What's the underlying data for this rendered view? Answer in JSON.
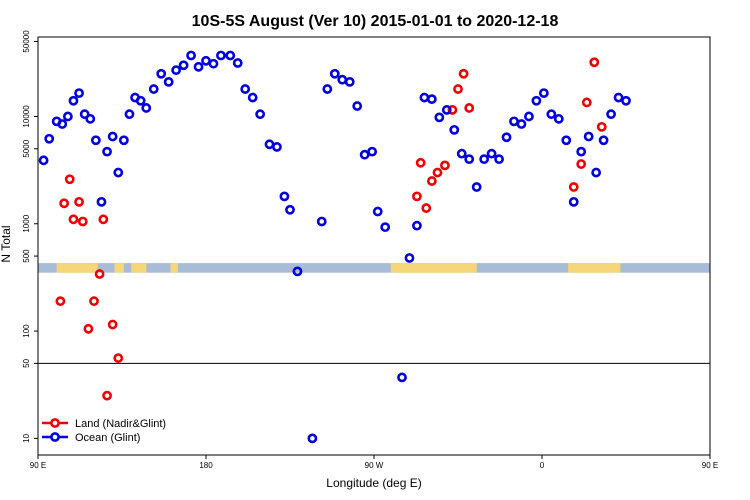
{
  "chart_data": {
    "type": "scatter",
    "title": "10S-5S August (Ver 10)   2015-01-01 to 2020-12-18",
    "xlabel": "Longitude (deg E)",
    "ylabel": "N Total",
    "x_range": [
      90,
      450
    ],
    "y_scale": "log",
    "ylim": [
      7,
      55000
    ],
    "x_ticks": [
      {
        "value": 90,
        "label": "90 E"
      },
      {
        "value": 180,
        "label": "180"
      },
      {
        "value": 270,
        "label": "90 W"
      },
      {
        "value": 360,
        "label": "0"
      },
      {
        "value": 450,
        "label": "90 E"
      },
      {
        "value": 540,
        "label": "180"
      }
    ],
    "y_ticks": [
      {
        "value": 10,
        "label": "10"
      },
      {
        "value": 50,
        "label": "50"
      },
      {
        "value": 100,
        "label": "100"
      },
      {
        "value": 500,
        "label": "500"
      },
      {
        "value": 1000,
        "label": "1000"
      },
      {
        "value": 5000,
        "label": "5000"
      },
      {
        "value": 10000,
        "label": "10000"
      },
      {
        "value": 50000,
        "label": "50000"
      }
    ],
    "reference_line_y": 50,
    "map_strip": {
      "y_range": [
        350,
        430
      ],
      "ocean_color": "#a8bcd8",
      "land_color": "#f5d77a",
      "land_segments": [
        [
          100,
          122
        ],
        [
          131,
          136
        ],
        [
          140,
          148
        ],
        [
          161,
          165
        ],
        [
          279,
          325
        ],
        [
          374,
          402
        ],
        [
          453,
          462
        ]
      ]
    },
    "series": [
      {
        "name": "Land (Nadir&Glint)",
        "color": "#ee0000",
        "points": [
          [
            102,
            190
          ],
          [
            104,
            1550
          ],
          [
            107,
            2600
          ],
          [
            109,
            1100
          ],
          [
            112,
            1600
          ],
          [
            114,
            1050
          ],
          [
            117,
            105
          ],
          [
            120,
            190
          ],
          [
            123,
            340
          ],
          [
            125,
            1100
          ],
          [
            127,
            25
          ],
          [
            130,
            115
          ],
          [
            133,
            56
          ],
          [
            293,
            1800
          ],
          [
            295,
            3700
          ],
          [
            298,
            1400
          ],
          [
            301,
            2500
          ],
          [
            304,
            3000
          ],
          [
            308,
            3500
          ],
          [
            312,
            11500
          ],
          [
            315,
            18000
          ],
          [
            318,
            25000
          ],
          [
            321,
            12000
          ],
          [
            377,
            2200
          ],
          [
            381,
            3600
          ],
          [
            384,
            13500
          ],
          [
            388,
            32000
          ],
          [
            392,
            8000
          ],
          [
            462,
            190
          ],
          [
            464,
            1550
          ],
          [
            467,
            2600
          ],
          [
            469,
            1100
          ],
          [
            472,
            1600
          ],
          [
            474,
            1050
          ],
          [
            477,
            105
          ],
          [
            480,
            190
          ],
          [
            483,
            340
          ],
          [
            485,
            1100
          ],
          [
            487,
            25
          ],
          [
            490,
            115
          ],
          [
            493,
            56
          ]
        ]
      },
      {
        "name": "Ocean (Glint)",
        "color": "#0000dd",
        "points": [
          [
            93,
            3900
          ],
          [
            96,
            6200
          ],
          [
            100,
            9000
          ],
          [
            103,
            8500
          ],
          [
            106,
            10000
          ],
          [
            109,
            14000
          ],
          [
            112,
            16500
          ],
          [
            115,
            10500
          ],
          [
            118,
            9500
          ],
          [
            121,
            6000
          ],
          [
            124,
            1600
          ],
          [
            127,
            4700
          ],
          [
            130,
            6500
          ],
          [
            133,
            3000
          ],
          [
            136,
            6000
          ],
          [
            139,
            10500
          ],
          [
            142,
            15000
          ],
          [
            145,
            14000
          ],
          [
            148,
            12000
          ],
          [
            152,
            18000
          ],
          [
            156,
            25000
          ],
          [
            160,
            21000
          ],
          [
            164,
            27000
          ],
          [
            168,
            30000
          ],
          [
            172,
            37000
          ],
          [
            176,
            29000
          ],
          [
            180,
            33000
          ],
          [
            184,
            31000
          ],
          [
            188,
            37000
          ],
          [
            193,
            37000
          ],
          [
            197,
            31500
          ],
          [
            201,
            18000
          ],
          [
            205,
            15000
          ],
          [
            209,
            10500
          ],
          [
            214,
            5500
          ],
          [
            218,
            5200
          ],
          [
            222,
            1800
          ],
          [
            225,
            1350
          ],
          [
            229,
            360
          ],
          [
            237,
            10
          ],
          [
            242,
            1050
          ],
          [
            245,
            18000
          ],
          [
            249,
            25000
          ],
          [
            253,
            22000
          ],
          [
            257,
            21000
          ],
          [
            261,
            12500
          ],
          [
            265,
            4400
          ],
          [
            269,
            4700
          ],
          [
            272,
            1300
          ],
          [
            276,
            930
          ],
          [
            285,
            37
          ],
          [
            289,
            480
          ],
          [
            293,
            960
          ],
          [
            297,
            15000
          ],
          [
            301,
            14500
          ],
          [
            305,
            9800
          ],
          [
            309,
            11500
          ],
          [
            313,
            7500
          ],
          [
            317,
            4500
          ],
          [
            321,
            4000
          ],
          [
            325,
            2200
          ],
          [
            329,
            4000
          ],
          [
            333,
            4500
          ],
          [
            337,
            4000
          ],
          [
            341,
            6400
          ],
          [
            345,
            9000
          ],
          [
            349,
            8500
          ],
          [
            353,
            10000
          ],
          [
            357,
            14000
          ],
          [
            361,
            16500
          ],
          [
            365,
            10500
          ],
          [
            369,
            9500
          ],
          [
            373,
            6000
          ],
          [
            377,
            1600
          ],
          [
            381,
            4700
          ],
          [
            385,
            6500
          ],
          [
            389,
            3000
          ],
          [
            393,
            6000
          ],
          [
            397,
            10500
          ],
          [
            401,
            15000
          ],
          [
            405,
            14000
          ]
        ]
      }
    ],
    "legend_position": "bottom-left"
  }
}
